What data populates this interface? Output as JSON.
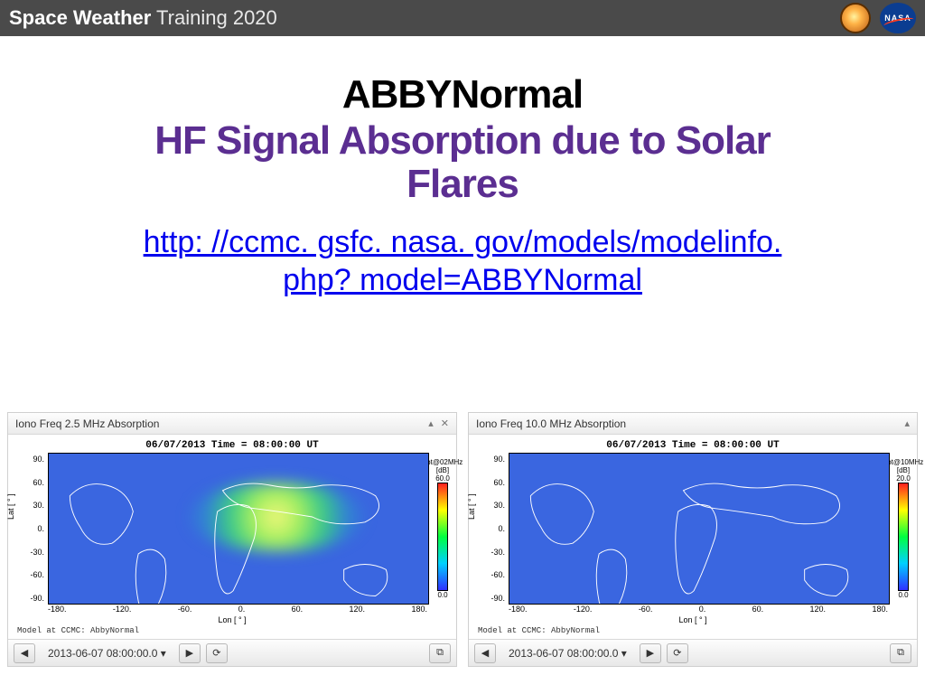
{
  "header": {
    "bold": "Space Weather",
    "light": " Training 2020",
    "nasa_text": "NASA"
  },
  "title1": "ABBYNormal",
  "title2_line1": "HF Signal Absorption due to Solar",
  "title2_line2": "Flares",
  "link_line1": "http: //ccmc. gsfc. nasa. gov/models/modelinfo.",
  "link_line2": "php? model=ABBYNormal",
  "title2_color": "#5b2e91",
  "link_color": "#0000ee",
  "panels": {
    "left": {
      "header": "Iono Freq 2.5 MHz Absorption",
      "chart_title": "06/07/2013 Time = 08:00:00 UT",
      "cb_label_top": "abt@02MHz",
      "cb_unit": "[dB]",
      "cb_max": "60.0",
      "cb_min": "0.0",
      "hotspot": {
        "show": true,
        "cx_pct": 60,
        "cy_pct": 42,
        "r_pct": 46
      }
    },
    "right": {
      "header": "Iono Freq 10.0 MHz Absorption",
      "chart_title": "06/07/2013 Time = 08:00:00 UT",
      "cb_label_top": "abt@10MHz",
      "cb_unit": "[dB]",
      "cb_max": "20.0",
      "cb_min": "0.0",
      "hotspot": {
        "show": false
      }
    },
    "y_ticks": [
      "90.",
      "60.",
      "30.",
      "0.",
      "-30.",
      "-60.",
      "-90."
    ],
    "y_label": "Lat [ ° ]",
    "x_ticks": [
      "-180.",
      "-120.",
      "-60.",
      "0.",
      "60.",
      "120.",
      "180."
    ],
    "x_label": "Lon [ ° ]",
    "model_credit": "Model at CCMC: AbbyNormal",
    "sea_color": "#3a66e0",
    "land_outline": "#ffffff"
  },
  "footer": {
    "timestamp": "2013-06-07 08:00:00.0",
    "dropdown_glyph": "▾",
    "prev_glyph": "◀",
    "next_glyph": "▶",
    "reload_glyph": "⟳",
    "video_glyph": "⧉"
  }
}
